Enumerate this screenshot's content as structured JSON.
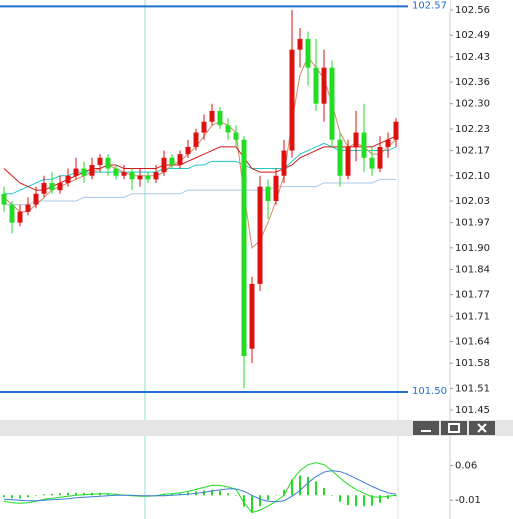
{
  "chart_data": [
    {
      "type": "candlestick",
      "up_color": "#e01010",
      "down_color": "#22dd22",
      "ylim": [
        101.45,
        102.56
      ],
      "yticks": [
        102.56,
        102.49,
        102.43,
        102.36,
        {
          "value": 102.3,
          "label": "102.30"
        },
        102.23,
        102.17,
        {
          "value": 102.1,
          "label": "102.10"
        },
        102.03,
        101.97,
        {
          "value": 101.9,
          "label": "101.90"
        },
        101.84,
        101.77,
        101.71,
        101.64,
        101.58,
        101.51,
        101.45
      ],
      "levels": [
        102.57,
        {
          "value": 101.5,
          "label": "101.50"
        }
      ],
      "level_color": "#1e6fd0",
      "open": [
        102.05,
        102.02,
        101.97,
        102.0,
        102.02,
        102.05,
        102.08,
        102.06,
        102.08,
        102.1,
        102.12,
        102.1,
        102.13,
        102.15,
        102.12,
        102.1,
        102.11,
        102.09,
        102.1,
        102.09,
        102.11,
        102.15,
        102.13,
        102.16,
        102.18,
        102.22,
        102.25,
        102.28,
        102.24,
        102.22,
        102.2,
        101.62,
        101.8,
        102.07,
        102.03,
        102.1,
        102.17,
        102.45,
        102.48,
        102.4,
        102.3,
        102.4,
        102.2,
        102.1,
        102.18,
        102.22,
        102.15,
        102.12,
        102.18,
        102.2
      ],
      "high": [
        102.07,
        102.03,
        102.02,
        102.04,
        102.07,
        102.1,
        102.11,
        102.1,
        102.12,
        102.15,
        102.14,
        102.15,
        102.16,
        102.16,
        102.13,
        102.13,
        102.12,
        102.12,
        102.11,
        102.13,
        102.17,
        102.16,
        102.17,
        102.2,
        102.23,
        102.27,
        102.3,
        102.29,
        102.26,
        102.24,
        102.21,
        101.82,
        102.1,
        102.09,
        102.12,
        102.2,
        102.56,
        102.51,
        102.5,
        102.48,
        102.45,
        102.42,
        102.22,
        102.2,
        102.28,
        102.3,
        102.18,
        102.21,
        102.22,
        102.26
      ],
      "low": [
        102.0,
        101.94,
        101.96,
        101.99,
        102.01,
        102.04,
        102.05,
        102.05,
        102.07,
        102.09,
        102.08,
        102.09,
        102.11,
        102.1,
        102.09,
        102.09,
        102.06,
        102.07,
        102.08,
        102.08,
        102.1,
        102.12,
        102.12,
        102.15,
        102.17,
        102.2,
        102.24,
        102.23,
        102.2,
        102.18,
        101.51,
        101.58,
        101.78,
        101.98,
        102.02,
        102.08,
        102.15,
        102.4,
        102.35,
        102.28,
        102.25,
        102.18,
        102.07,
        102.09,
        102.14,
        102.11,
        102.1,
        102.11,
        102.15,
        102.18
      ],
      "close": [
        102.02,
        101.97,
        102.0,
        102.02,
        102.05,
        102.08,
        102.06,
        102.08,
        102.1,
        102.12,
        102.1,
        102.13,
        102.15,
        102.12,
        102.1,
        102.11,
        102.09,
        102.1,
        102.09,
        102.11,
        102.15,
        102.13,
        102.16,
        102.18,
        102.22,
        102.25,
        102.28,
        102.24,
        102.22,
        102.2,
        101.6,
        101.8,
        102.07,
        102.03,
        102.1,
        102.17,
        102.45,
        102.48,
        102.4,
        102.3,
        102.4,
        102.2,
        102.1,
        102.18,
        102.22,
        102.15,
        102.12,
        102.18,
        102.2,
        102.25
      ],
      "lines": [
        {
          "color": "#a8c8e8",
          "values": [
            102.02,
            102.02,
            102.02,
            102.02,
            102.03,
            102.03,
            102.03,
            102.03,
            102.03,
            102.03,
            102.04,
            102.04,
            102.04,
            102.04,
            102.04,
            102.04,
            102.05,
            102.05,
            102.05,
            102.05,
            102.05,
            102.05,
            102.05,
            102.06,
            102.06,
            102.06,
            102.06,
            102.06,
            102.06,
            102.06,
            102.06,
            102.06,
            102.06,
            102.06,
            102.07,
            102.07,
            102.07,
            102.07,
            102.07,
            102.07,
            102.08,
            102.08,
            102.08,
            102.08,
            102.08,
            102.08,
            102.08,
            102.09,
            102.09,
            102.09
          ]
        },
        {
          "color": "#20c8c8",
          "values": [
            102.05,
            102.05,
            102.06,
            102.07,
            102.08,
            102.09,
            102.09,
            102.1,
            102.1,
            102.11,
            102.11,
            102.11,
            102.11,
            102.11,
            102.11,
            102.11,
            102.11,
            102.11,
            102.11,
            102.11,
            102.12,
            102.12,
            102.12,
            102.12,
            102.13,
            102.13,
            102.14,
            102.14,
            102.14,
            102.14,
            102.13,
            102.12,
            102.12,
            102.12,
            102.12,
            102.12,
            102.14,
            102.16,
            102.17,
            102.18,
            102.19,
            102.18,
            102.17,
            102.17,
            102.17,
            102.17,
            102.17,
            102.17,
            102.17,
            102.18
          ]
        },
        {
          "color": "#d08a6a",
          "values": [
            102.04,
            102.02,
            102.0,
            102.0,
            102.02,
            102.04,
            102.06,
            102.07,
            102.08,
            102.09,
            102.1,
            102.11,
            102.12,
            102.13,
            102.12,
            102.11,
            102.1,
            102.1,
            102.1,
            102.1,
            102.11,
            102.13,
            102.14,
            102.16,
            102.18,
            102.21,
            102.24,
            102.25,
            102.24,
            102.22,
            102.05,
            101.9,
            101.92,
            101.97,
            102.03,
            102.1,
            102.25,
            102.38,
            102.43,
            102.4,
            102.37,
            102.3,
            102.22,
            102.18,
            102.19,
            102.18,
            102.16,
            102.16,
            102.18,
            102.2
          ]
        },
        {
          "color": "#d01818",
          "values": [
            102.12,
            102.1,
            102.08,
            102.07,
            102.06,
            102.06,
            102.07,
            102.08,
            102.09,
            102.1,
            102.11,
            102.12,
            102.12,
            102.13,
            102.13,
            102.12,
            102.12,
            102.12,
            102.12,
            102.12,
            102.13,
            102.13,
            102.13,
            102.14,
            102.15,
            102.16,
            102.17,
            102.18,
            102.18,
            102.18,
            102.15,
            102.12,
            102.11,
            102.11,
            102.11,
            102.12,
            102.13,
            102.15,
            102.16,
            102.17,
            102.18,
            102.18,
            102.18,
            102.18,
            102.18,
            102.18,
            102.18,
            102.19,
            102.2,
            102.21
          ]
        }
      ]
    },
    {
      "type": "macd",
      "ylim": [
        -0.048,
        0.12
      ],
      "yticks": [
        0.06,
        -0.01
      ],
      "histogram": {
        "color": "#22dd22",
        "values": [
          -0.004,
          -0.006,
          -0.006,
          -0.004,
          -0.001,
          0.002,
          0.003,
          0.004,
          0.005,
          0.005,
          0.005,
          0.005,
          0.005,
          0.004,
          0.002,
          0.0,
          -0.001,
          -0.001,
          -0.001,
          0.0,
          0.003,
          0.003,
          0.004,
          0.006,
          0.008,
          0.01,
          0.011,
          0.009,
          0.004,
          -0.001,
          -0.023,
          -0.035,
          -0.022,
          -0.01,
          0.001,
          0.011,
          0.032,
          0.04,
          0.037,
          0.028,
          0.015,
          0.0,
          -0.013,
          -0.02,
          -0.022,
          -0.022,
          -0.021,
          -0.015,
          -0.007,
          -0.002
        ]
      },
      "lines": [
        {
          "color": "#22dd22",
          "values": [
            -0.012,
            -0.015,
            -0.016,
            -0.015,
            -0.012,
            -0.008,
            -0.006,
            -0.004,
            -0.002,
            0.0,
            0.001,
            0.002,
            0.003,
            0.003,
            0.002,
            0.0,
            -0.001,
            -0.002,
            -0.002,
            -0.001,
            0.002,
            0.003,
            0.005,
            0.008,
            0.012,
            0.016,
            0.02,
            0.02,
            0.017,
            0.012,
            -0.015,
            -0.035,
            -0.03,
            -0.022,
            -0.012,
            0.0,
            0.03,
            0.05,
            0.062,
            0.066,
            0.062,
            0.05,
            0.035,
            0.022,
            0.012,
            0.004,
            -0.003,
            -0.004,
            -0.002,
            0.0
          ]
        },
        {
          "color": "#3a7fd8",
          "values": [
            -0.008,
            -0.009,
            -0.01,
            -0.011,
            -0.011,
            -0.01,
            -0.009,
            -0.008,
            -0.007,
            -0.005,
            -0.004,
            -0.003,
            -0.002,
            -0.001,
            0.0,
            0.0,
            0.0,
            -0.001,
            -0.001,
            -0.001,
            -0.001,
            0.0,
            0.001,
            0.002,
            0.004,
            0.006,
            0.009,
            0.011,
            0.013,
            0.013,
            0.008,
            0.0,
            -0.008,
            -0.012,
            -0.013,
            -0.011,
            -0.002,
            0.01,
            0.025,
            0.038,
            0.047,
            0.05,
            0.048,
            0.042,
            0.034,
            0.026,
            0.018,
            0.011,
            0.005,
            0.002
          ]
        }
      ]
    }
  ]
}
